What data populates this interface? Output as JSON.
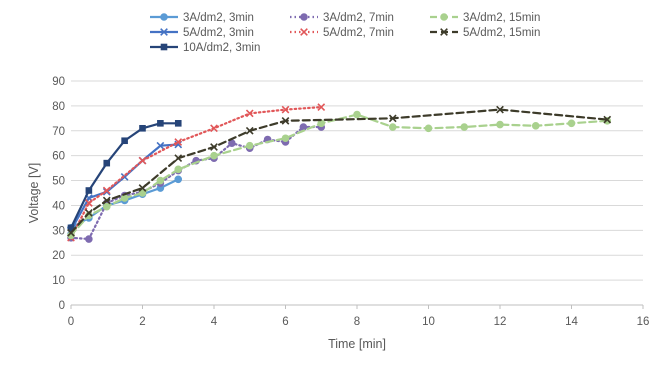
{
  "chart_data": {
    "type": "line",
    "title": "",
    "xlabel": "Time [min]",
    "ylabel": "Voltage [V]",
    "xlim": [
      0,
      16
    ],
    "ylim": [
      0,
      90
    ],
    "xticks": [
      0,
      2,
      4,
      6,
      8,
      10,
      12,
      14,
      16
    ],
    "yticks": [
      0,
      10,
      20,
      30,
      40,
      50,
      60,
      70,
      80,
      90
    ],
    "grid": true,
    "legend_position": "top",
    "series": [
      {
        "name": "3A/dm2, 3min",
        "color": "#5b9bd5",
        "line": "solid",
        "marker": "circle",
        "points": [
          [
            0,
            31
          ],
          [
            0.5,
            35
          ],
          [
            1,
            40
          ],
          [
            1.5,
            42
          ],
          [
            2,
            44.5
          ],
          [
            2.5,
            47
          ],
          [
            3,
            50.5
          ]
        ]
      },
      {
        "name": "5A/dm2, 3min",
        "color": "#4472c4",
        "line": "solid",
        "marker": "cross",
        "points": [
          [
            0,
            30
          ],
          [
            0.5,
            43
          ],
          [
            1,
            45.5
          ],
          [
            1.5,
            51.5
          ],
          [
            2,
            58
          ],
          [
            2.5,
            64
          ],
          [
            3,
            64.5
          ]
        ]
      },
      {
        "name": "10A/dm2, 3min",
        "color": "#264478",
        "line": "solid",
        "marker": "square",
        "points": [
          [
            0,
            31
          ],
          [
            0.5,
            46
          ],
          [
            1,
            57
          ],
          [
            1.5,
            66
          ],
          [
            2,
            71
          ],
          [
            2.5,
            73
          ],
          [
            3,
            73
          ]
        ]
      },
      {
        "name": "3A/dm2, 7min",
        "color": "#7e6bb0",
        "line": "dotted",
        "marker": "circle",
        "points": [
          [
            0,
            27
          ],
          [
            0.5,
            26.5
          ],
          [
            1,
            41
          ],
          [
            1.5,
            44
          ],
          [
            2,
            45.5
          ],
          [
            2.5,
            49
          ],
          [
            3,
            54
          ],
          [
            3.5,
            58
          ],
          [
            4,
            59
          ],
          [
            4.5,
            65
          ],
          [
            5,
            63
          ],
          [
            5.5,
            66.5
          ],
          [
            6,
            65.5
          ],
          [
            6.5,
            71.5
          ],
          [
            7,
            71.5
          ]
        ]
      },
      {
        "name": "5A/dm2, 7min",
        "color": "#e15759",
        "line": "dotted",
        "marker": "cross",
        "points": [
          [
            0,
            27
          ],
          [
            0.5,
            41
          ],
          [
            1,
            46
          ],
          [
            2,
            58
          ],
          [
            3,
            65.5
          ],
          [
            4,
            71
          ],
          [
            5,
            77
          ],
          [
            6,
            78.5
          ],
          [
            7,
            79.5
          ]
        ]
      },
      {
        "name": "3A/dm2, 15min",
        "color": "#a9d18e",
        "line": "dashed",
        "marker": "circle",
        "points": [
          [
            0,
            28
          ],
          [
            0.5,
            36
          ],
          [
            1,
            39.5
          ],
          [
            1.5,
            43
          ],
          [
            2,
            45
          ],
          [
            2.5,
            50
          ],
          [
            3,
            54.5
          ],
          [
            4,
            60
          ],
          [
            5,
            64
          ],
          [
            6,
            67
          ],
          [
            7,
            73
          ],
          [
            8,
            76.5
          ],
          [
            9,
            71.5
          ],
          [
            10,
            71
          ],
          [
            11,
            71.5
          ],
          [
            12,
            72.5
          ],
          [
            13,
            72
          ],
          [
            14,
            73
          ],
          [
            15,
            74
          ]
        ]
      },
      {
        "name": "5A/dm2, 15min",
        "color": "#3d3b2a",
        "line": "dashed",
        "marker": "cross",
        "points": [
          [
            0,
            29
          ],
          [
            0.5,
            37
          ],
          [
            1,
            42
          ],
          [
            2,
            47
          ],
          [
            3,
            59
          ],
          [
            4,
            63.5
          ],
          [
            5,
            70
          ],
          [
            6,
            74
          ],
          [
            9,
            75
          ],
          [
            12,
            78.5
          ],
          [
            15,
            74.5
          ]
        ]
      }
    ]
  },
  "colors": {
    "grid": "#d9d9d9",
    "axis": "#bfbfbf",
    "text": "#595959",
    "background": "#ffffff"
  }
}
